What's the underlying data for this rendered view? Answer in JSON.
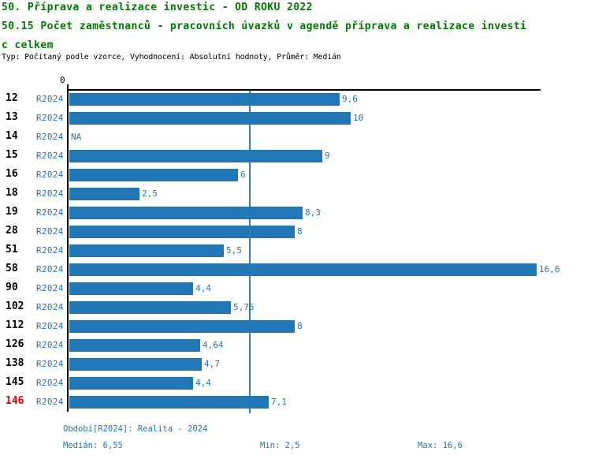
{
  "header": {
    "title_line1": "50. Příprava a realizace investic - OD ROKU 2022",
    "title_line2": "50.15 Počet zaměstnanců - pracovních úvazků v agendě příprava a realizace investi",
    "title_line3": "c celkem",
    "meta": "Typ: Počítaný podle vzorce, Vyhodnocení: Absolutní hodnoty, Průměr: Medián"
  },
  "chart_data": {
    "type": "bar",
    "orientation": "horizontal",
    "title": "50.15 Počet zaměstnanců - pracovních úvazků v agendě příprava a realizace investic celkem",
    "axis_zero_label": "0",
    "series_label": "R2024",
    "categories": [
      "12",
      "13",
      "14",
      "15",
      "16",
      "18",
      "19",
      "28",
      "51",
      "58",
      "90",
      "102",
      "112",
      "126",
      "138",
      "145",
      "146"
    ],
    "values": [
      9.6,
      10,
      null,
      9,
      6,
      2.5,
      8.3,
      8,
      5.5,
      16.6,
      4.4,
      5.75,
      8,
      4.64,
      4.7,
      4.4,
      7.1
    ],
    "value_labels": [
      "9,6",
      "10",
      "NA",
      "9",
      "6",
      "2,5",
      "8,3",
      "8",
      "5,5",
      "16,6",
      "4,4",
      "5,75",
      "8",
      "4,64",
      "4,7",
      "4,4",
      "7,1"
    ],
    "highlighted_category": "146",
    "xlim": [
      0,
      16.6
    ],
    "median_line_value": 6.55,
    "grid": "off",
    "bar_color": "#2077b4",
    "median_line_color": "#2e7cb8",
    "highlight_color": "#dd0000",
    "blue_text_color": "#2077b4",
    "title_color": "#007700"
  },
  "footer": {
    "period": "Období[R2024]: Realita - 2024",
    "median": "Medián: 6,55",
    "min": "Min: 2,5",
    "max": "Max: 16,6"
  }
}
